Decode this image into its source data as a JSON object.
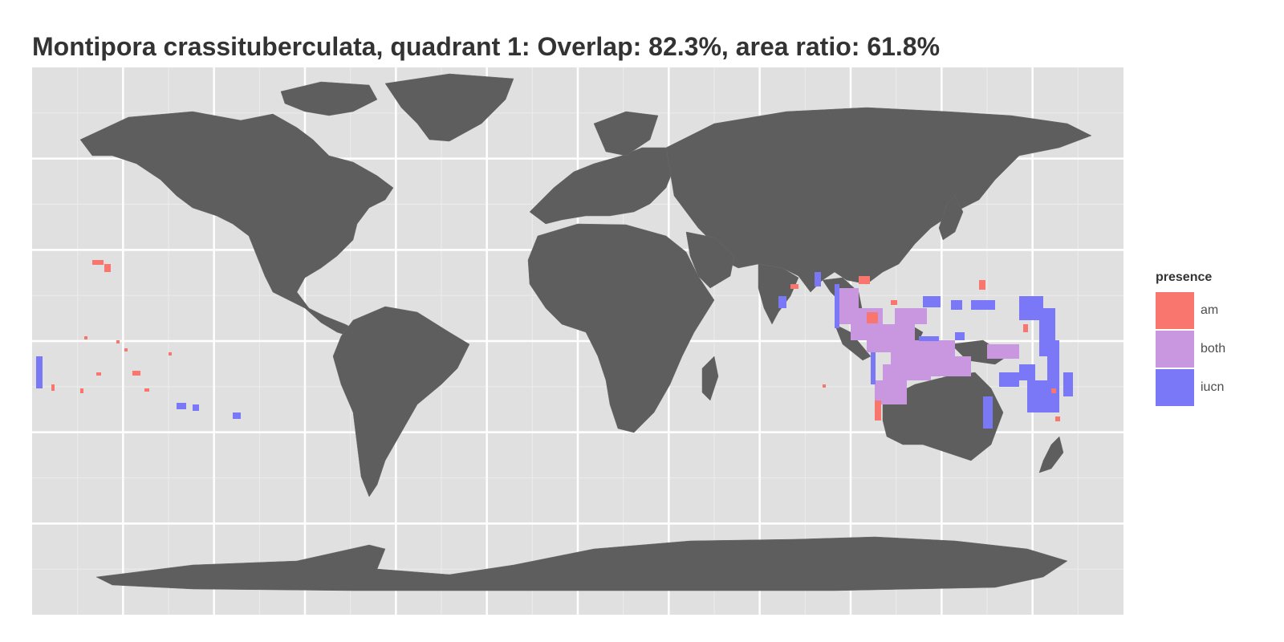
{
  "title": "Montipora crassituberculata, quadrant 1: Overlap: 82.3%, area ratio: 61.8%",
  "legend": {
    "title": "presence",
    "items": [
      {
        "label": "am",
        "color": "#f8766d"
      },
      {
        "label": "both",
        "color": "#c996e0"
      },
      {
        "label": "iucn",
        "color": "#7b78f8"
      }
    ]
  },
  "colors": {
    "panel_background": "#e0e0e0",
    "land": "#5e5e5e",
    "grid_major": "#ffffff",
    "grid_minor": "#ececec"
  },
  "map": {
    "projection": "equirectangular",
    "lon_range": [
      -180,
      180
    ],
    "lat_range": [
      -90,
      90
    ],
    "grid_major_lon": [
      -150,
      -120,
      -90,
      -60,
      -30,
      0,
      30,
      60,
      90,
      120,
      150
    ],
    "grid_major_lat": [
      -60,
      -30,
      0,
      30,
      60
    ],
    "grid_minor_lon": [
      -165,
      -135,
      -105,
      -75,
      -45,
      -15,
      15,
      45,
      75,
      105,
      135,
      165
    ],
    "grid_minor_lat": [
      -75,
      -45,
      -15,
      15,
      45,
      75
    ]
  }
}
